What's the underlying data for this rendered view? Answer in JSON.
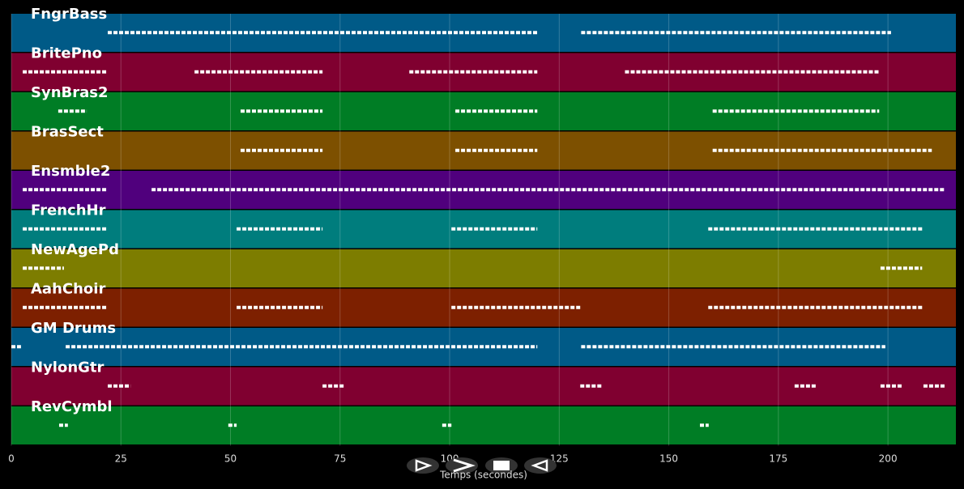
{
  "chart_data": {
    "type": "pianoroll",
    "xlabel": "Temps (secondes)",
    "xlim": [
      0,
      215.5
    ],
    "xticks": [
      0,
      25,
      50,
      75,
      100,
      125,
      150,
      175,
      200
    ],
    "grid": true,
    "series": [
      {
        "name": "FngrBass",
        "color": "#005a87",
        "values": [
          [
            22,
            120
          ],
          [
            130,
            200.7
          ]
        ]
      },
      {
        "name": "BritePno",
        "color": "#800030",
        "values": [
          [
            2.6,
            22
          ],
          [
            41.8,
            71
          ],
          [
            90.8,
            120
          ],
          [
            140,
            198
          ]
        ]
      },
      {
        "name": "SynBras2",
        "color": "#007d25",
        "values": [
          [
            10.7,
            17.2
          ],
          [
            52.3,
            71
          ],
          [
            101.3,
            120
          ],
          [
            160,
            198
          ]
        ]
      },
      {
        "name": "BrasSect",
        "color": "#7d5000",
        "values": [
          [
            52.3,
            71
          ],
          [
            101.3,
            120
          ],
          [
            160,
            210
          ]
        ]
      },
      {
        "name": "Ensmble2",
        "color": "#50007d",
        "values": [
          [
            2.6,
            22
          ],
          [
            32,
            120
          ],
          [
            120,
            213
          ]
        ]
      },
      {
        "name": "FrenchHr",
        "color": "#007d7d",
        "values": [
          [
            2.6,
            22
          ],
          [
            51.4,
            71
          ],
          [
            100.4,
            120
          ],
          [
            159,
            208
          ]
        ]
      },
      {
        "name": "NewAgePd",
        "color": "#7d7d00",
        "values": [
          [
            2.6,
            12
          ],
          [
            198.3,
            207.8
          ]
        ]
      },
      {
        "name": "AahChoir",
        "color": "#7d2000",
        "values": [
          [
            2.6,
            22
          ],
          [
            51.4,
            71
          ],
          [
            100.4,
            129.8
          ],
          [
            159,
            208
          ]
        ]
      },
      {
        "name": "GM Drums",
        "color": "#005a87",
        "values": [
          [
            0,
            2.2
          ],
          [
            12.4,
            120
          ],
          [
            130,
            199.4
          ]
        ]
      },
      {
        "name": "NylonGtr",
        "color": "#800030",
        "values": [
          [
            22,
            27.2
          ],
          [
            71,
            76
          ],
          [
            129.8,
            134.8
          ],
          [
            178.7,
            183.7
          ],
          [
            198.3,
            203.3
          ],
          [
            208.1,
            213
          ]
        ]
      },
      {
        "name": "RevCymbl",
        "color": "#007d25",
        "values": [
          [
            10.9,
            12.9
          ],
          [
            49.5,
            51.4
          ],
          [
            98.3,
            100.4
          ],
          [
            157.1,
            159.1
          ]
        ]
      }
    ]
  }
}
